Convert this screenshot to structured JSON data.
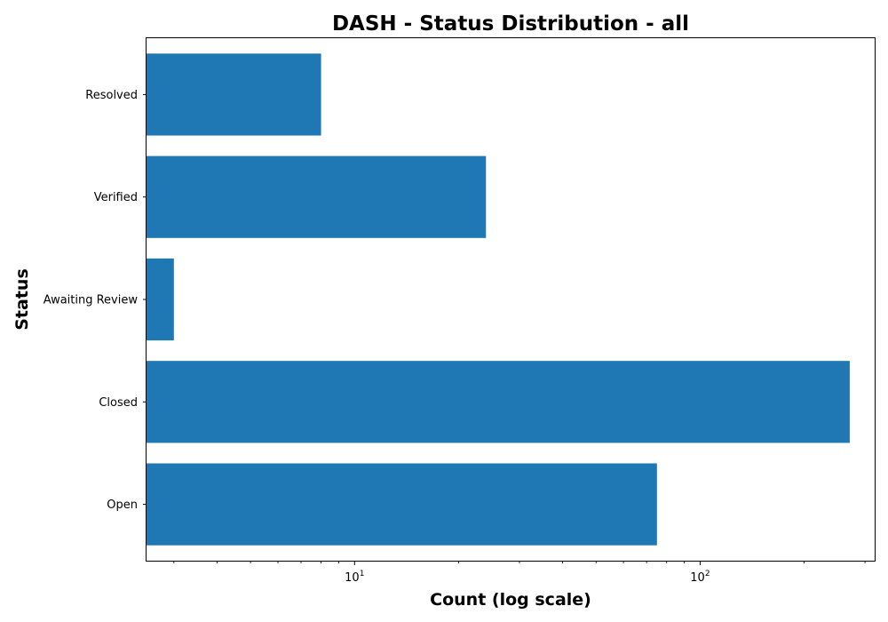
{
  "chart_data": {
    "type": "bar",
    "orientation": "horizontal",
    "title": "DASH - Status Distribution - all",
    "xlabel": "Count (log scale)",
    "ylabel": "Status",
    "x_scale": "log",
    "xlim": [
      2.5,
      320
    ],
    "categories": [
      "Open",
      "Closed",
      "Awaiting Review",
      "Verified",
      "Resolved"
    ],
    "values": [
      75,
      271,
      3,
      24,
      8
    ],
    "x_major_ticks": [
      {
        "base": "10",
        "exponent": "1",
        "value": 10
      },
      {
        "base": "10",
        "exponent": "2",
        "value": 100
      }
    ],
    "x_minor_ticks": [
      3,
      4,
      5,
      6,
      7,
      8,
      9,
      20,
      30,
      40,
      50,
      60,
      70,
      80,
      90,
      200,
      300
    ],
    "bar_color": "#1f77b4",
    "grid": false,
    "legend": "none"
  }
}
